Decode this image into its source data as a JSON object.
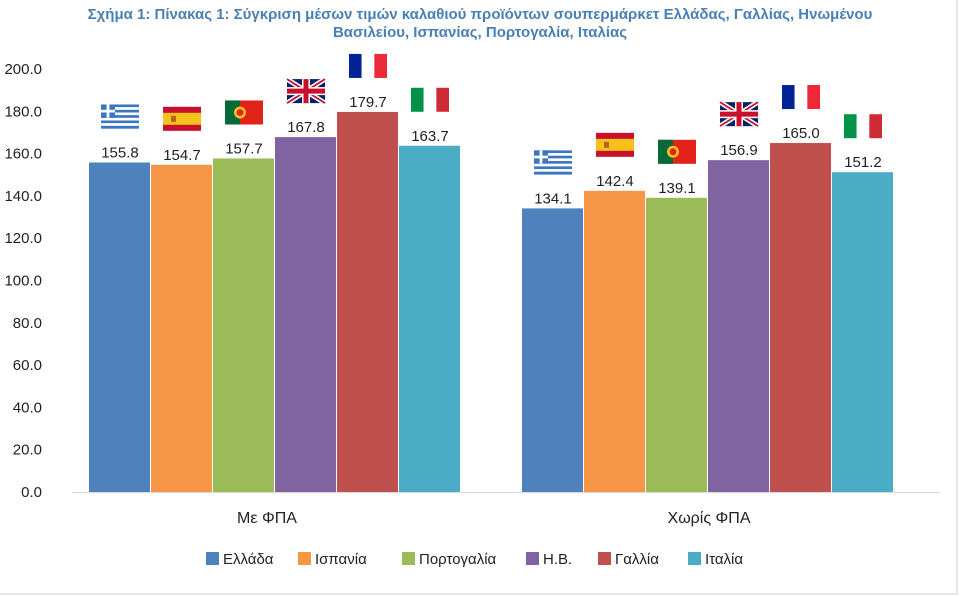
{
  "chart_data": {
    "type": "bar",
    "title_line1": "Σχήμα 1: Πίνακας 1: Σύγκριση μέσων τιμών καλαθιού προϊόντων σουπερμάρκετ Ελλάδας, Γαλλίας, Ηνωμένου",
    "title_line2": "Βασιλείου, Ισπανίας, Πορτογαλία, Ιταλίας",
    "categories": [
      "Με ΦΠΑ",
      "Χωρίς ΦΠΑ"
    ],
    "ylim": [
      0,
      200
    ],
    "ytick_step": 20,
    "grid": false,
    "legend_position": "bottom",
    "series": [
      {
        "name": "Ελλάδα",
        "color": "#4f81bd",
        "flag": "greece-flag",
        "values": [
          155.8,
          134.1
        ],
        "labels": [
          "155.8",
          "134.1"
        ]
      },
      {
        "name": "Ισπανία",
        "color": "#f79646",
        "flag": "spain-flag",
        "values": [
          154.7,
          142.4
        ],
        "labels": [
          "154.7",
          "142.4"
        ]
      },
      {
        "name": "Πορτογαλία",
        "color": "#9bbb59",
        "flag": "portugal-flag",
        "values": [
          157.7,
          139.1
        ],
        "labels": [
          "157.7",
          "139.1"
        ]
      },
      {
        "name": "Η.Β.",
        "color": "#8064a2",
        "flag": "uk-flag",
        "values": [
          167.8,
          156.9
        ],
        "labels": [
          "167.8",
          "156.9"
        ]
      },
      {
        "name": "Γαλλία",
        "color": "#c0504d",
        "flag": "france-flag",
        "values": [
          179.7,
          165.0
        ],
        "labels": [
          "179.7",
          "165.0"
        ]
      },
      {
        "name": "Ιταλία",
        "color": "#4bacc6",
        "flag": "italy-flag",
        "values": [
          163.7,
          151.2
        ],
        "labels": [
          "163.7",
          "151.2"
        ]
      }
    ]
  }
}
